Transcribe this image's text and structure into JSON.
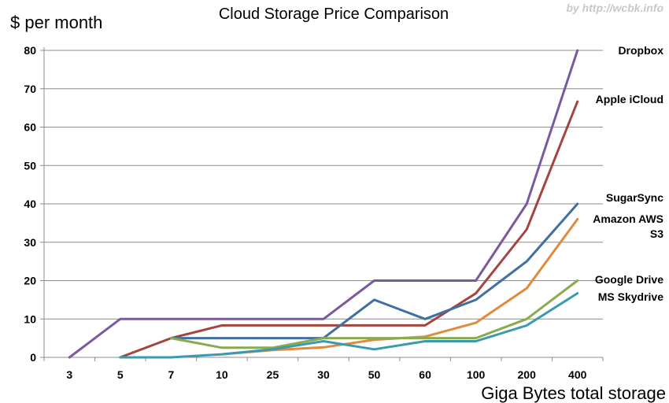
{
  "watermark": "by http://wcbk.info",
  "chart_data": {
    "type": "line",
    "title": "Cloud Storage Price Comparison",
    "ylabel": "$ per month",
    "xlabel": "Giga Bytes total storage",
    "categories": [
      "3",
      "5",
      "7",
      "10",
      "25",
      "30",
      "50",
      "60",
      "100",
      "200",
      "400"
    ],
    "ylim": [
      0,
      80
    ],
    "yticks": [
      0,
      10,
      20,
      30,
      40,
      50,
      60,
      70,
      80
    ],
    "grid": true,
    "legend": "labels at line ends, right",
    "series": [
      {
        "name": "Dropbox",
        "label_lines": [
          "Dropbox"
        ],
        "color": "#7a5a9e",
        "values": [
          0,
          10,
          10,
          10,
          10,
          10,
          20,
          20,
          20,
          40,
          80
        ]
      },
      {
        "name": "Apple iCloud",
        "label_lines": [
          "Apple iCloud"
        ],
        "color": "#a5443f",
        "values": [
          null,
          0,
          5,
          8.33,
          8.33,
          8.33,
          8.33,
          8.33,
          16.67,
          33.33,
          66.67
        ]
      },
      {
        "name": "SugarSync",
        "label_lines": [
          "SugarSync"
        ],
        "color": "#3f6fa3",
        "values": [
          null,
          null,
          5,
          5,
          5,
          5,
          15,
          10,
          15,
          25,
          40
        ]
      },
      {
        "name": "Amazon AWS S3",
        "label_lines": [
          "Amazon AWS",
          "S3"
        ],
        "color": "#e08a3c",
        "values": [
          null,
          null,
          null,
          0.8,
          1.9,
          2.6,
          4.6,
          5.4,
          9,
          18,
          36
        ]
      },
      {
        "name": "Google Drive",
        "label_lines": [
          "Google Drive"
        ],
        "color": "#8aab4d",
        "values": [
          null,
          null,
          5,
          2.5,
          2.5,
          5,
          5,
          5,
          5,
          10,
          20
        ]
      },
      {
        "name": "MS Skydrive",
        "label_lines": [
          "MS Skydrive"
        ],
        "color": "#3a9ab0",
        "values": [
          null,
          0,
          0,
          0.8,
          2.1,
          4.2,
          2.1,
          4.2,
          4.2,
          8.3,
          16.7
        ]
      }
    ]
  }
}
